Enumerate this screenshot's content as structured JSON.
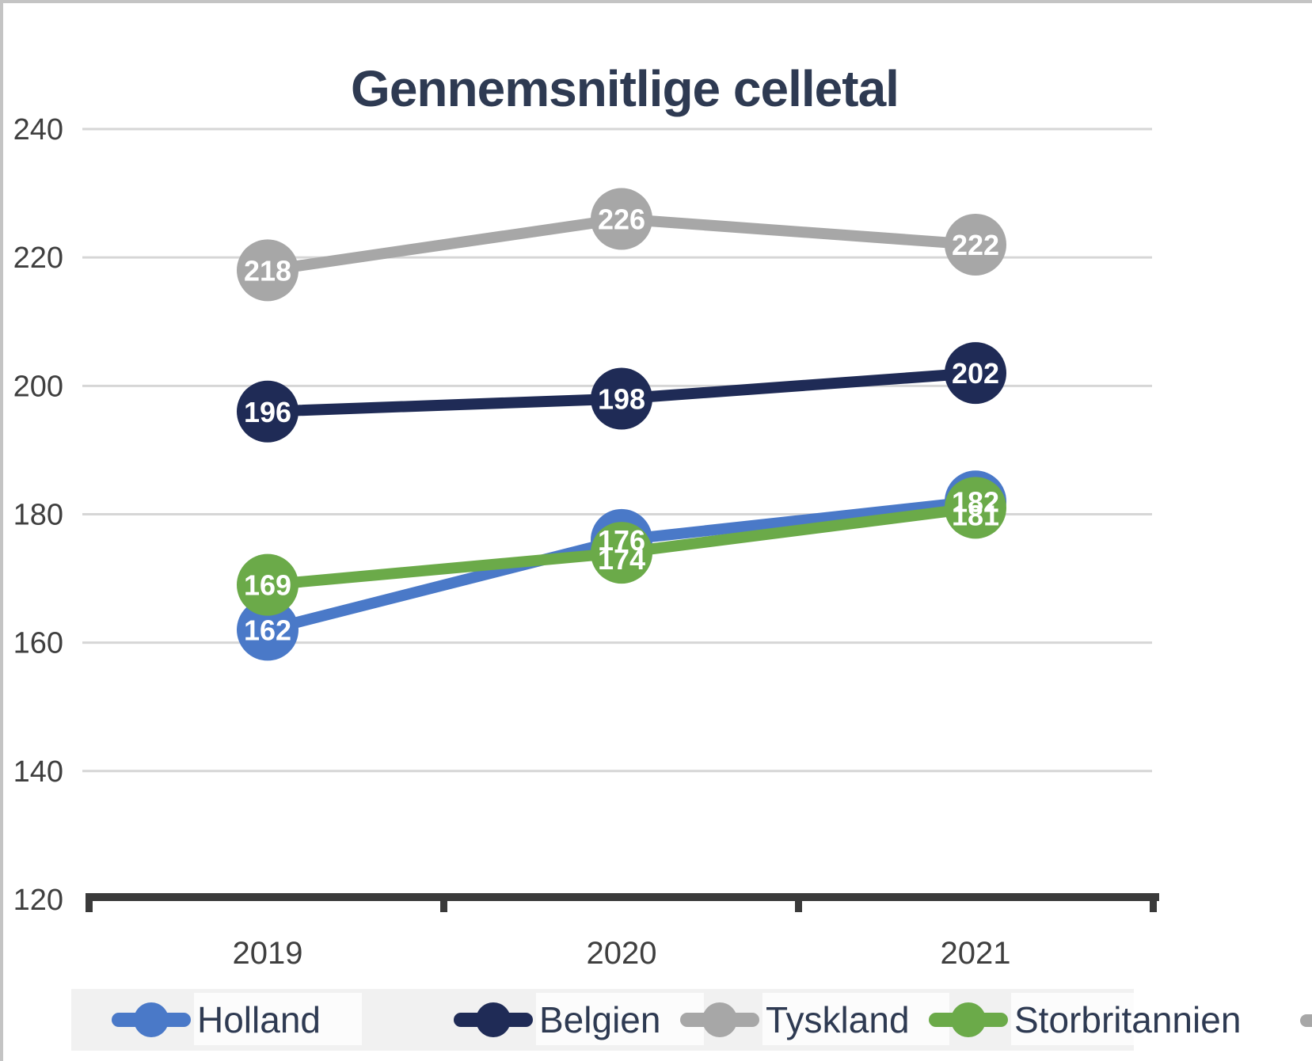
{
  "page": {
    "background": "#FFFFFF",
    "border_color": "#C4C4C4"
  },
  "chart_data": {
    "type": "line",
    "title": "Gennemsnitlige celletal",
    "x": [
      "2019",
      "2020",
      "2021"
    ],
    "series": [
      {
        "name": "Holland",
        "color": "#4A79C8",
        "values": [
          162,
          176,
          182
        ]
      },
      {
        "name": "Belgien",
        "color": "#1F2B56",
        "values": [
          196,
          198,
          202
        ]
      },
      {
        "name": "Tyskland",
        "color": "#A7A7A7",
        "values": [
          218,
          226,
          222
        ]
      },
      {
        "name": "Storbritannien",
        "color": "#6BAA49",
        "values": [
          169,
          174,
          181
        ]
      }
    ],
    "ylim": [
      120,
      240
    ],
    "yticks": [
      240,
      220,
      200,
      180,
      160,
      140,
      120
    ],
    "grid": true,
    "data_labels": true,
    "legend_position": "bottom",
    "label_offsets": {
      "Holland": [
        0,
        0,
        0
      ],
      "Belgien": [
        0,
        0,
        0
      ],
      "Tyskland": [
        0,
        0,
        0
      ],
      "Storbritannien": [
        0,
        8,
        9
      ]
    }
  },
  "styles": {
    "title_color": "#2E3A52",
    "axis_text_color": "#3F3F3F",
    "grid_color": "#D6D6D6",
    "axis_line_color": "#3A3A3A",
    "data_label_color": "#FFFFFF",
    "legend_bg": "#F1F1F1",
    "legend_chip_bg": "#FCFCFC",
    "legend_text_color": "#2E3A52"
  }
}
